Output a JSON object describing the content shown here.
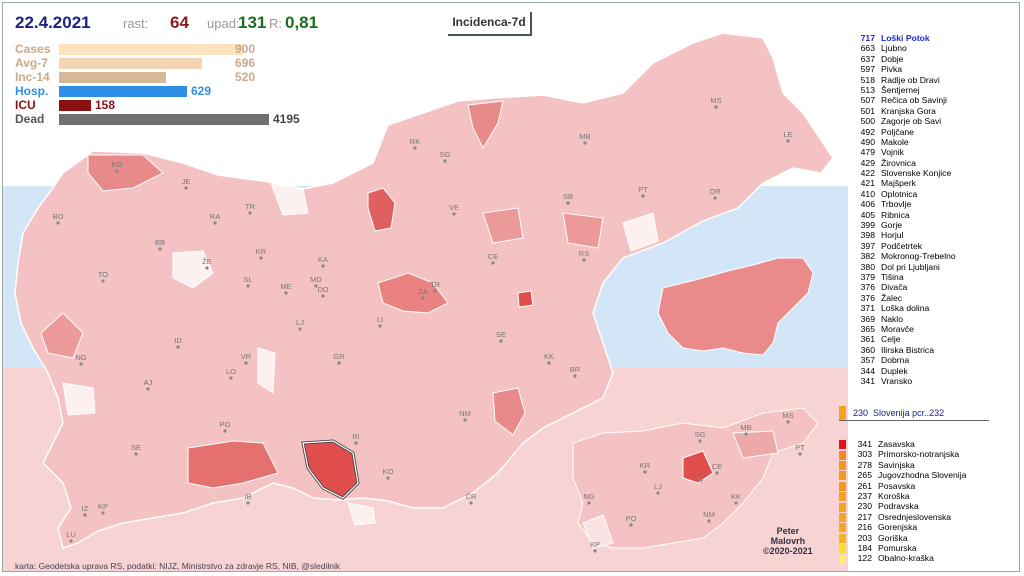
{
  "header": {
    "date": "22.4.2021",
    "rast_label": "rast:",
    "rast_value": "64",
    "upad_label": "upad:",
    "upad_value": "131",
    "r_label": "R:",
    "r_value": "0,81",
    "title": "Incidenca-7d"
  },
  "stats": [
    {
      "name": "Cases",
      "value": "900",
      "fraction": 0.878,
      "color": "#fde3bd",
      "name_color": "#c9a98a"
    },
    {
      "name": "Avg-7",
      "value": "696",
      "fraction": 0.68,
      "color": "#f3d4b5",
      "name_color": "#c9a98a"
    },
    {
      "name": "Inc-14",
      "value": "520",
      "fraction": 0.51,
      "color": "#d7b899",
      "name_color": "#c9a98a"
    },
    {
      "name": "Hosp.",
      "value": "629",
      "fraction": 0.61,
      "color": "#2f8fe8",
      "name_color": "#2f8fe8"
    },
    {
      "name": "ICU",
      "value": "158",
      "fraction": 0.15,
      "color": "#8b1212",
      "name_color": "#8b1212"
    },
    {
      "name": "Dead",
      "value": "4195",
      "fraction": 1.0,
      "color": "#707070",
      "name_color": "#555555"
    }
  ],
  "municipalities": [
    {
      "value": "717",
      "name": "Loški Potok"
    },
    {
      "value": "663",
      "name": "Ljubno"
    },
    {
      "value": "637",
      "name": "Dobje"
    },
    {
      "value": "597",
      "name": "Pivka"
    },
    {
      "value": "518",
      "name": "Radlje ob Dravi"
    },
    {
      "value": "513",
      "name": "Šentjernej"
    },
    {
      "value": "507",
      "name": "Rečica ob Savinji"
    },
    {
      "value": "501",
      "name": "Kranjska Gora"
    },
    {
      "value": "500",
      "name": "Zagorje ob Savi"
    },
    {
      "value": "492",
      "name": "Poljčane"
    },
    {
      "value": "490",
      "name": "Makole"
    },
    {
      "value": "479",
      "name": "Vojnik"
    },
    {
      "value": "429",
      "name": "Žirovnica"
    },
    {
      "value": "422",
      "name": "Slovenske Konjice"
    },
    {
      "value": "421",
      "name": "Majšperk"
    },
    {
      "value": "410",
      "name": "Oplotnica"
    },
    {
      "value": "406",
      "name": "Trbovlje"
    },
    {
      "value": "405",
      "name": "Ribnica"
    },
    {
      "value": "399",
      "name": "Gorje"
    },
    {
      "value": "398",
      "name": "Horjul"
    },
    {
      "value": "397",
      "name": "Podčetrtek"
    },
    {
      "value": "382",
      "name": "Mokronog-Trebelno"
    },
    {
      "value": "380",
      "name": "Dol pri Ljubljani"
    },
    {
      "value": "379",
      "name": "Tišina"
    },
    {
      "value": "376",
      "name": "Divača"
    },
    {
      "value": "376",
      "name": "Žalec"
    },
    {
      "value": "371",
      "name": "Loška dolina"
    },
    {
      "value": "369",
      "name": "Naklo"
    },
    {
      "value": "365",
      "name": "Moravče"
    },
    {
      "value": "361",
      "name": "Celje"
    },
    {
      "value": "360",
      "name": "Ilirska Bistrica"
    },
    {
      "value": "357",
      "name": "Dobrna"
    },
    {
      "value": "344",
      "name": "Duplek"
    },
    {
      "value": "341",
      "name": "Vransko"
    }
  ],
  "slovenia": {
    "value": "230",
    "label": "Slovenija  pcr..232",
    "color": "#f5a21d"
  },
  "regions": [
    {
      "value": "341",
      "name": "Zasavska",
      "color": "#e2141b"
    },
    {
      "value": "303",
      "name": "Primorsko-notranjska",
      "color": "#f08a1e"
    },
    {
      "value": "278",
      "name": "Savinjska",
      "color": "#f39a1d"
    },
    {
      "value": "265",
      "name": "Jugovzhodna Slovenija",
      "color": "#f39a1d"
    },
    {
      "value": "261",
      "name": "Posavska",
      "color": "#f39a1d"
    },
    {
      "value": "237",
      "name": "Koroška",
      "color": "#f5a21d"
    },
    {
      "value": "230",
      "name": "Podravska",
      "color": "#f5a21d"
    },
    {
      "value": "217",
      "name": "Osrednjeslovenska",
      "color": "#f5a81d"
    },
    {
      "value": "216",
      "name": "Gorenjska",
      "color": "#f5a81d"
    },
    {
      "value": "203",
      "name": "Goriška",
      "color": "#f7b51d"
    },
    {
      "value": "184",
      "name": "Pomurska",
      "color": "#f9de2a"
    },
    {
      "value": "122",
      "name": "Obalno-kraška",
      "color": "#fdf06a"
    }
  ],
  "map_labels": [
    "KG",
    "JE",
    "RA",
    "TR",
    "BO",
    "BB",
    "ŽE",
    "KR",
    "KA",
    "SL",
    "ME",
    "MD",
    "DO",
    "TO",
    "LJ",
    "LI",
    "ID",
    "VR",
    "LO",
    "AJ",
    "NG",
    "GR",
    "PO",
    "RI",
    "SE",
    "IB",
    "KO",
    "IZ",
    "KP",
    "LU",
    "RK",
    "SG",
    "MB",
    "MS",
    "LE",
    "PT",
    "OR",
    "SB",
    "VE",
    "CE",
    "RS",
    "ZA",
    "TR",
    "SE",
    "KK",
    "BR",
    "NM",
    "ČR"
  ],
  "small_map_labels": [
    "MS",
    "SG",
    "MB",
    "PT",
    "KR",
    "LJ",
    "TR",
    "CE",
    "NG",
    "KK",
    "PO",
    "NM",
    "KP"
  ],
  "credit": [
    "Peter",
    "Malovrh",
    "©2020-2021"
  ],
  "source": "karta: Geodetska uprava RS,  podatki: NIJZ, Ministrstvo za zdravje RS, NIB, @sledilnik"
}
